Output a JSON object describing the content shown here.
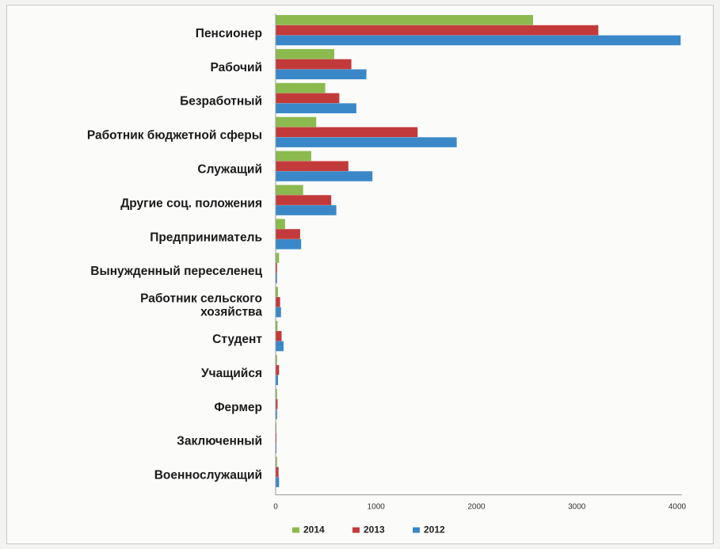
{
  "chart_data": {
    "type": "bar",
    "orientation": "horizontal",
    "title": "",
    "xlabel": "",
    "ylabel": "",
    "categories": [
      "Пенсионер",
      "Рабочий",
      "Безработный",
      "Работник бюджетной сферы",
      "Служащий",
      "Другие соц. положения",
      "Предприниматель",
      "Вынужденный переселенец",
      "Работник сельского хозяйства",
      "Студент",
      "Учащийся",
      "Фермер",
      "Заключенный",
      "Военнослужащий"
    ],
    "category_lines": [
      [
        "Пенсионер"
      ],
      [
        "Рабочий"
      ],
      [
        "Безработный"
      ],
      [
        "Работник бюджетной сферы"
      ],
      [
        "Служащий"
      ],
      [
        "Другие соц. положения"
      ],
      [
        "Предприниматель"
      ],
      [
        "Вынужденный переселенец"
      ],
      [
        "Работник сельского",
        "хозяйства"
      ],
      [
        "Студент"
      ],
      [
        "Учащийся"
      ],
      [
        "Фермер"
      ],
      [
        "Заключенный"
      ],
      [
        "Военнослужащий"
      ]
    ],
    "series": [
      {
        "name": "2014",
        "color": "#8cba4e",
        "values": [
          2560,
          580,
          490,
          400,
          350,
          270,
          90,
          30,
          20,
          15,
          10,
          10,
          5,
          10
        ]
      },
      {
        "name": "2013",
        "color": "#c33a3a",
        "values": [
          3210,
          750,
          630,
          1410,
          720,
          550,
          240,
          10,
          40,
          55,
          30,
          15,
          5,
          25
        ]
      },
      {
        "name": "2012",
        "color": "#3a88c8",
        "values": [
          4030,
          900,
          800,
          1800,
          960,
          600,
          250,
          10,
          50,
          75,
          20,
          10,
          5,
          30
        ]
      }
    ],
    "xlim": [
      0,
      4000
    ],
    "xticks": [
      "0",
      "1000",
      "2000",
      "3000",
      "4000"
    ],
    "grid": false,
    "legend_position": "bottom"
  }
}
